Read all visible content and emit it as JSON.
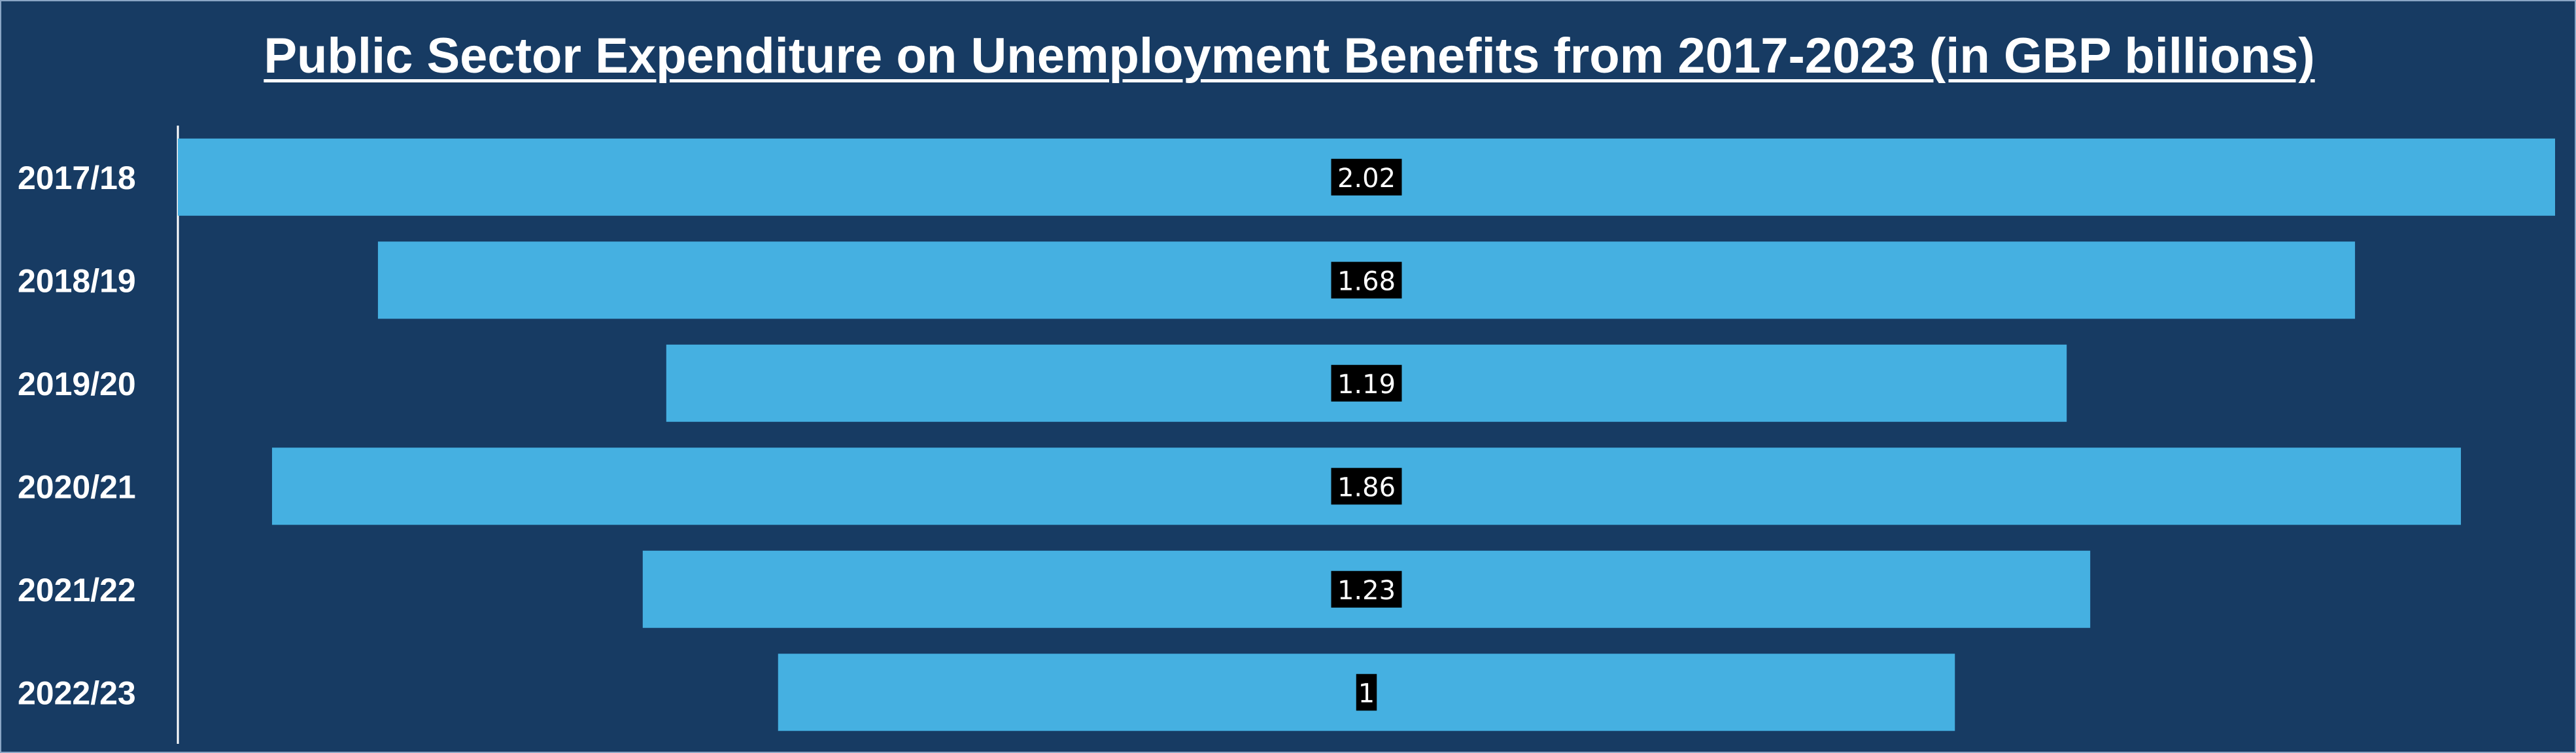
{
  "chart_data": {
    "type": "bar",
    "orientation": "horizontal",
    "style": "funnel",
    "title": "Public Sector Expenditure on Unemployment Benefits from 2017-2023 (in GBP billions)",
    "xlabel": "",
    "ylabel": "",
    "categories": [
      "2017/18",
      "2018/19",
      "2019/20",
      "2020/21",
      "2021/22",
      "2022/23"
    ],
    "values": [
      2.02,
      1.68,
      1.19,
      1.86,
      1.23,
      1
    ],
    "value_labels": [
      "2.02",
      "1.68",
      "1.19",
      "1.86",
      "1.23",
      "1"
    ],
    "xlim": [
      0,
      2.02
    ],
    "grid": false,
    "legend": "none",
    "colors": {
      "background": "#173b63",
      "bar": "#45b0e1",
      "label_box": "#000000",
      "text": "#ffffff",
      "axis": "#ffffff"
    }
  }
}
